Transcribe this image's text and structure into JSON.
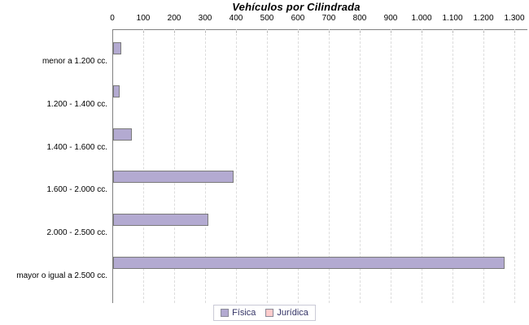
{
  "chart_data": {
    "type": "bar",
    "orientation": "horizontal",
    "title": "Vehículos por Cilindrada",
    "categories": [
      "menor a 1.200 cc.",
      "1.200 - 1.400 cc.",
      "1.400 - 1.600 cc.",
      "1.600 - 2.000 cc.",
      "2.000 - 2.500 cc.",
      "mayor o igual a 2.500 cc."
    ],
    "series": [
      {
        "name": "Física",
        "color": "#b3aad1",
        "border": "#7a7a7a",
        "values": [
          25,
          20,
          60,
          390,
          308,
          1265
        ]
      },
      {
        "name": "Jurídica",
        "color": "#ffcccc",
        "border": "#a98f8f",
        "values": [
          0,
          0,
          0,
          0,
          0,
          0
        ]
      }
    ],
    "x_tick_labels": [
      "0",
      "100",
      "200",
      "300",
      "400",
      "500",
      "600",
      "700",
      "800",
      "900",
      "1.000",
      "1.100",
      "1.200",
      "1.300"
    ],
    "x_tick_values": [
      0,
      100,
      200,
      300,
      400,
      500,
      600,
      700,
      800,
      900,
      1000,
      1100,
      1200,
      1300
    ],
    "xlim": [
      0,
      1300
    ],
    "grid": "vertical-dashed",
    "legend_position": "bottom-center"
  },
  "colors": {
    "background": "#ffffff",
    "axis_line": "#808080",
    "gridline": "#dcdcdc",
    "title_text": "#000000",
    "label_text": "#000000",
    "legend_text": "#333366",
    "legend_border": "#c9c9d6"
  }
}
